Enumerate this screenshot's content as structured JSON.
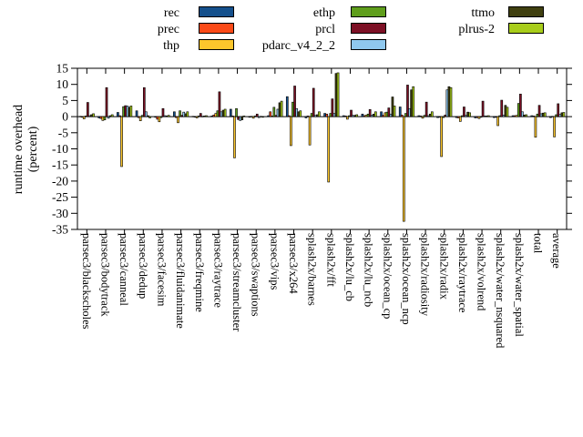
{
  "figure_title": "",
  "ylabel_line1": "runtime overhead",
  "ylabel_line2": "(percent)",
  "legend": {
    "position": "top-center-3-columns",
    "items": [
      "rec",
      "prec",
      "thp",
      "ethp",
      "prcl",
      "pdarc_v4_2_2",
      "ttmo",
      "plrus-2"
    ]
  },
  "colors": {
    "rec": "#15508c",
    "prec": "#fb4a18",
    "thp": "#fcc62c",
    "ethp": "#5f9e1c",
    "prcl": "#7d1025",
    "pdarc_v4_2_2": "#8fc8ee",
    "ttmo": "#404010",
    "plrus-2": "#a8cd1b",
    "axis": "#000000",
    "background": "#ffffff"
  },
  "chart_data": {
    "type": "bar",
    "title": "",
    "xlabel": "",
    "ylabel": "runtime overhead (percent)",
    "ylim": [
      -35,
      15
    ],
    "yticks": [
      15,
      10,
      5,
      0,
      -5,
      -10,
      -15,
      -20,
      -25,
      -30,
      -35
    ],
    "grid": false,
    "legend_position": "top",
    "categories": [
      "parsec3/blackscholes",
      "parsec3/bodytrack",
      "parsec3/canneal",
      "parsec3/dedup",
      "parsec3/facesim",
      "parsec3/fluidanimate",
      "parsec3/freqmine",
      "parsec3/raytrace",
      "parsec3/streamcluster",
      "parsec3/swaptions",
      "parsec3/vips",
      "parsec3/x264",
      "splash2x/barnes",
      "splash2x/fft",
      "splash2x/lu_cb",
      "splash2x/lu_ncb",
      "splash2x/ocean_cp",
      "splash2x/ocean_ncp",
      "splash2x/radiosity",
      "splash2x/radix",
      "splash2x/raytrace",
      "splash2x/volrend",
      "splash2x/water_nsquared",
      "splash2x/water_spatial",
      "total",
      "average"
    ],
    "series": [
      {
        "name": "rec",
        "color": "#15508c",
        "values": [
          0.1,
          -0.4,
          1.3,
          1.8,
          -0.2,
          1.5,
          0.1,
          0.2,
          2.3,
          -0.2,
          0.3,
          6.2,
          -0.4,
          1.0,
          0.3,
          0.8,
          1.5,
          3.0,
          0.3,
          -0.3,
          -0.3,
          -0.4,
          -0.3,
          0.3,
          0.3,
          -0.3
        ]
      },
      {
        "name": "prec",
        "color": "#fb4a18",
        "values": [
          -0.2,
          -0.6,
          0.3,
          -0.3,
          -0.8,
          -0.3,
          -0.1,
          0.5,
          0.2,
          0.1,
          1.5,
          0.3,
          0.2,
          0.8,
          0.2,
          0.3,
          0.4,
          0.5,
          0.2,
          -0.2,
          -0.4,
          -0.3,
          -0.2,
          0.3,
          0.2,
          0.1
        ]
      },
      {
        "name": "thp",
        "color": "#fcc62c",
        "values": [
          -0.7,
          -1.2,
          -15.5,
          -1.3,
          -1.6,
          -1.9,
          -0.4,
          1.0,
          -12.8,
          -0.5,
          0.2,
          -9.0,
          -8.8,
          -20.3,
          -0.8,
          0.5,
          1.2,
          -32.5,
          -0.5,
          -12.4,
          -1.5,
          -0.6,
          -2.8,
          0.4,
          -6.4,
          -6.3
        ]
      },
      {
        "name": "ethp",
        "color": "#5f9e1c",
        "values": [
          0.2,
          -1.0,
          3.1,
          0.4,
          -0.3,
          1.8,
          0.2,
          1.8,
          2.5,
          0.2,
          2.9,
          4.5,
          1.0,
          1.0,
          0.3,
          0.8,
          1.4,
          1.0,
          0.4,
          -0.3,
          0.3,
          -0.2,
          0.3,
          4.1,
          0.8,
          0.6
        ]
      },
      {
        "name": "prcl",
        "color": "#7d1025",
        "values": [
          4.4,
          9.0,
          3.4,
          9.0,
          2.5,
          0.4,
          1.0,
          7.7,
          -0.9,
          0.8,
          0.4,
          9.5,
          8.8,
          5.5,
          2.0,
          2.2,
          2.7,
          9.8,
          4.5,
          0.5,
          3.0,
          4.8,
          5.1,
          7.0,
          3.5,
          4.0
        ]
      },
      {
        "name": "pdarc_v4_2_2",
        "color": "#8fc8ee",
        "values": [
          0.3,
          -0.5,
          3.3,
          1.5,
          0.3,
          1.4,
          0.1,
          1.5,
          -1.2,
          -0.3,
          2.3,
          2.5,
          0.4,
          1.0,
          0.4,
          0.5,
          0.8,
          2.5,
          0.3,
          8.3,
          0.4,
          0.2,
          0.5,
          1.5,
          0.9,
          0.7
        ]
      },
      {
        "name": "ttmo",
        "color": "#404010",
        "values": [
          0.6,
          0.3,
          2.9,
          0.3,
          0.2,
          0.9,
          0.2,
          2.0,
          -1.0,
          0.1,
          4.3,
          1.5,
          0.6,
          13.4,
          0.4,
          0.8,
          6.1,
          8.3,
          0.8,
          9.3,
          1.4,
          0.2,
          3.5,
          0.5,
          1.1,
          1.2
        ]
      },
      {
        "name": "plrus-2",
        "color": "#a8cd1b",
        "values": [
          0.9,
          0.6,
          3.3,
          -0.4,
          0.4,
          1.5,
          0.3,
          2.3,
          0.2,
          -0.2,
          4.8,
          1.8,
          1.5,
          13.6,
          0.6,
          1.5,
          3.3,
          9.3,
          1.5,
          9.0,
          1.2,
          0.3,
          2.9,
          0.6,
          1.2,
          1.3
        ]
      }
    ]
  }
}
